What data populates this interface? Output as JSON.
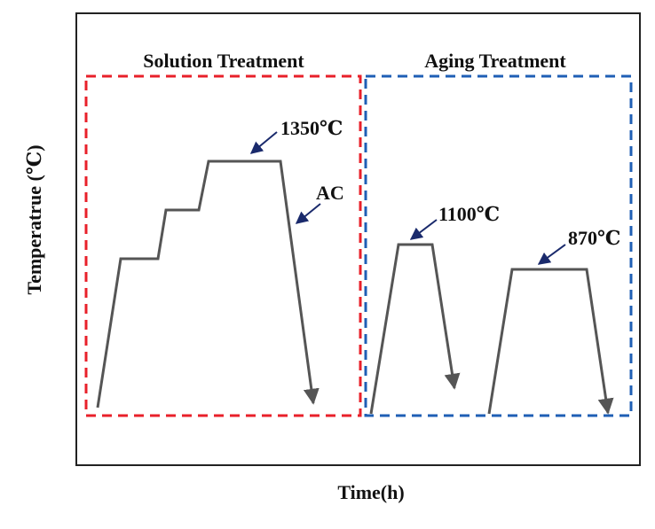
{
  "axes": {
    "ylabel": "Temperatrue (℃)",
    "xlabel": "Time(h)"
  },
  "sections": {
    "solution": {
      "title": "Solution Treatment",
      "color": "#e8202a"
    },
    "aging": {
      "title": "Aging Treatment",
      "color": "#1f5fb5"
    }
  },
  "annotations": {
    "t1350": "1350℃",
    "ac": "AC",
    "t1100": "1100℃",
    "t870": "870℃"
  },
  "colors": {
    "curve": "#555555",
    "arrow": "#1a2a6c",
    "frame": "#222222"
  }
}
